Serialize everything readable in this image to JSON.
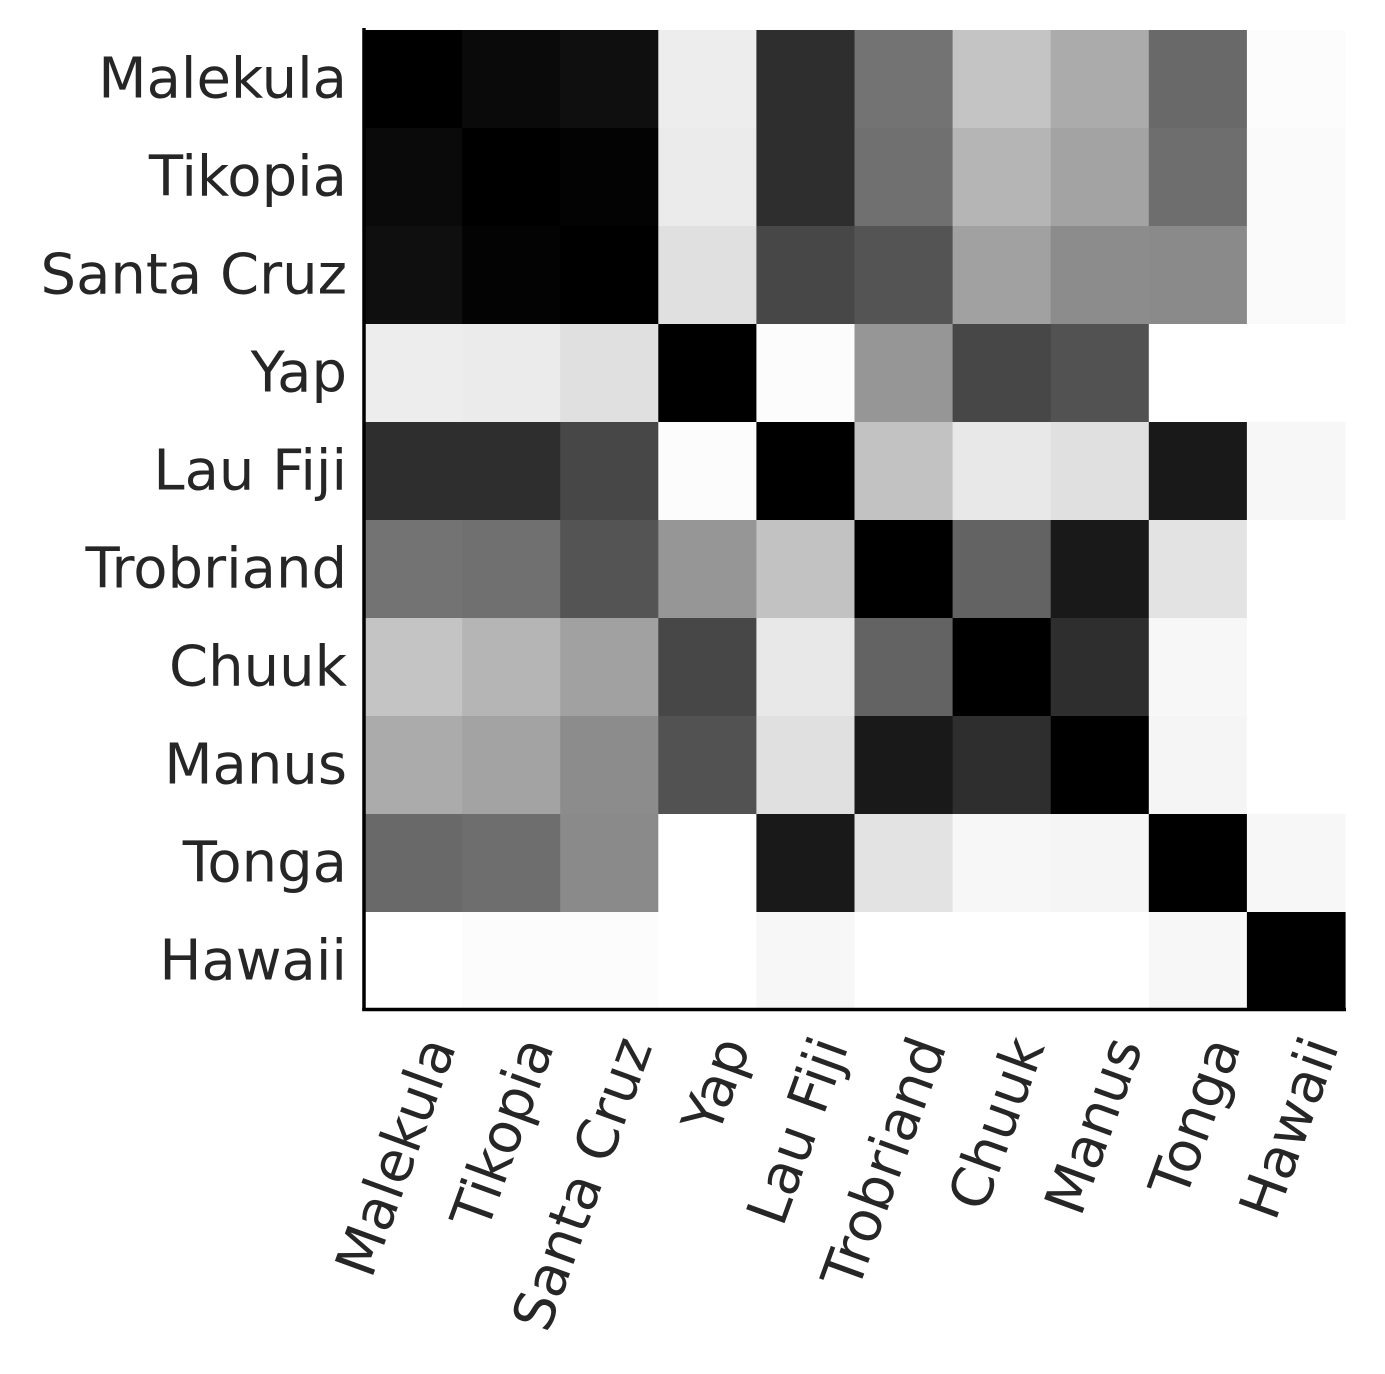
{
  "chart_data": {
    "type": "heatmap",
    "title": "",
    "xlabel": "",
    "ylabel": "",
    "colormap": "greys",
    "value_range": [
      0,
      1
    ],
    "grid": false,
    "rows": [
      "Malekula",
      "Tikopia",
      "Santa Cruz",
      "Yap",
      "Lau Fiji",
      "Trobriand",
      "Chuuk",
      "Manus",
      "Tonga",
      "Hawaii"
    ],
    "columns": [
      "Malekula",
      "Tikopia",
      "Santa Cruz",
      "Yap",
      "Lau Fiji",
      "Trobriand",
      "Chuuk",
      "Manus",
      "Tonga",
      "Hawaii"
    ],
    "values": [
      [
        1.0,
        0.96,
        0.94,
        0.07,
        0.82,
        0.55,
        0.23,
        0.33,
        0.59,
        0.01
      ],
      [
        0.96,
        1.0,
        0.99,
        0.08,
        0.82,
        0.56,
        0.29,
        0.36,
        0.57,
        0.02
      ],
      [
        0.94,
        0.99,
        1.0,
        0.12,
        0.72,
        0.67,
        0.37,
        0.45,
        0.46,
        0.02
      ],
      [
        0.07,
        0.08,
        0.12,
        1.0,
        0.01,
        0.41,
        0.72,
        0.68,
        0.0,
        0.0
      ],
      [
        0.82,
        0.82,
        0.72,
        0.01,
        1.0,
        0.24,
        0.09,
        0.12,
        0.9,
        0.03
      ],
      [
        0.55,
        0.56,
        0.67,
        0.41,
        0.24,
        1.0,
        0.61,
        0.9,
        0.11,
        0.0
      ],
      [
        0.23,
        0.29,
        0.37,
        0.72,
        0.09,
        0.61,
        1.0,
        0.82,
        0.03,
        0.0
      ],
      [
        0.33,
        0.36,
        0.45,
        0.68,
        0.12,
        0.9,
        0.82,
        1.0,
        0.04,
        0.0
      ],
      [
        0.59,
        0.57,
        0.46,
        0.0,
        0.9,
        0.11,
        0.03,
        0.04,
        1.0,
        0.03
      ],
      [
        0.0,
        0.01,
        0.01,
        0.0,
        0.03,
        0.0,
        0.0,
        0.0,
        0.03,
        1.0
      ]
    ]
  }
}
